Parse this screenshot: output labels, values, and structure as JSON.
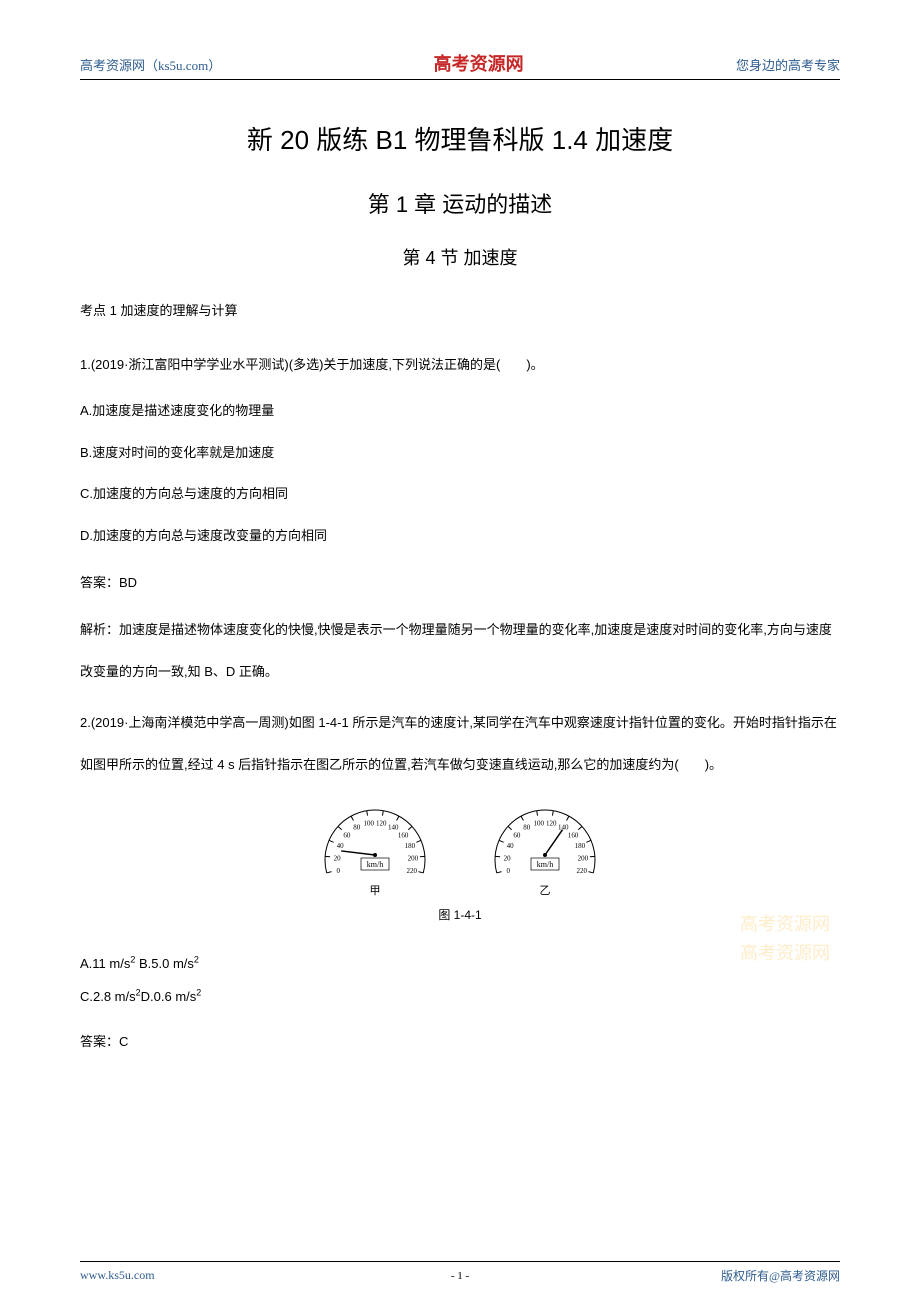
{
  "header": {
    "left": "高考资源网（ks5u.com）",
    "center": "高考资源网",
    "right": "您身边的高考专家"
  },
  "titles": {
    "main": "新 20 版练 B1 物理鲁科版 1.4 加速度",
    "chapter": "第 1 章  运动的描述",
    "section": "第 4 节 加速度"
  },
  "kaodian": "考点 1 加速度的理解与计算",
  "q1": {
    "stem": "1.(2019·浙江富阳中学学业水平测试)(多选)关于加速度,下列说法正确的是(　　)。",
    "optA": "A.加速度是描述速度变化的物理量",
    "optB": "B.速度对时间的变化率就是加速度",
    "optC": "C.加速度的方向总与速度的方向相同",
    "optD": "D.加速度的方向总与速度改变量的方向相同",
    "answer": "答案：BD",
    "analysis": "解析：加速度是描述物体速度变化的快慢,快慢是表示一个物理量随另一个物理量的变化率,加速度是速度对时间的变化率,方向与速度改变量的方向一致,知 B、D 正确。"
  },
  "q2": {
    "stem": "2.(2019·上海南洋模范中学高一周测)如图 1-4-1 所示是汽车的速度计,某同学在汽车中观察速度计指针位置的变化。开始时指针指示在如图甲所示的位置,经过 4 s 后指针指示在图乙所示的位置,若汽车做匀变速直线运动,那么它的加速度约为(　　)。",
    "figureCaption": "图 1-4-1",
    "optsLine1": "A.11 m/s² B.5.0 m/s²",
    "optsLine2": "C.2.8 m/s²D.0.6 m/s²",
    "answer": "答案：C"
  },
  "gauges": {
    "ticks": [
      "0",
      "20",
      "40",
      "60",
      "80",
      "100",
      "120",
      "140",
      "160",
      "180",
      "200",
      "220"
    ],
    "unit": "km/h",
    "leftLabel": "甲",
    "rightLabel": "乙",
    "leftNeedleAngle": -165,
    "rightNeedleAngle": -60,
    "arcColor": "#000000",
    "needleColor": "#000000",
    "tickFontSize": 7
  },
  "watermark": {
    "line1": "高考资源网",
    "line2": "高考资源网"
  },
  "footer": {
    "left": "www.ks5u.com",
    "center": "- 1 -",
    "right": "版权所有@高考资源网"
  }
}
